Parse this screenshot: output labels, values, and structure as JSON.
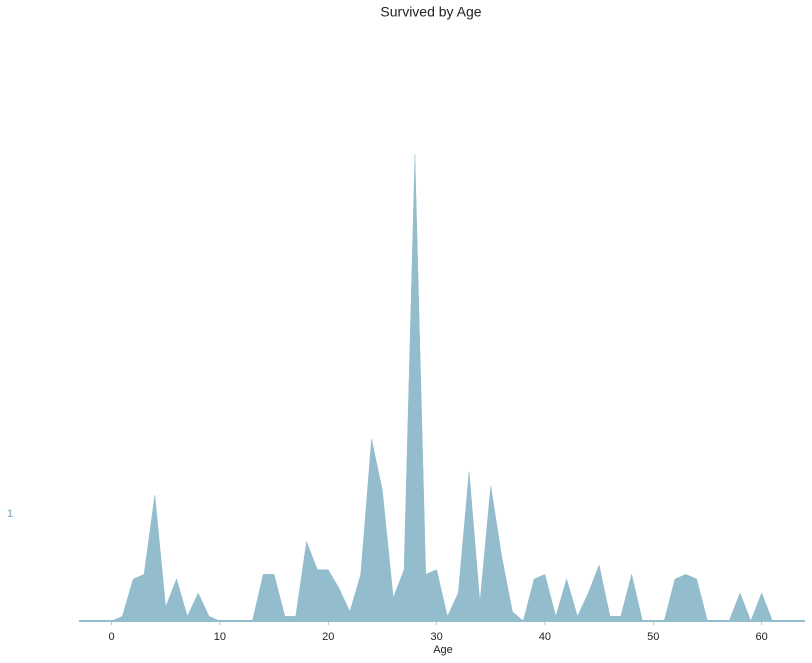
{
  "chart_data": {
    "type": "area",
    "title": "Survived by Age",
    "xlabel": "Age",
    "xlim": [
      -3,
      64
    ],
    "xticks": [
      0,
      10,
      20,
      30,
      40,
      50,
      60
    ],
    "ylim": [
      0,
      110
    ],
    "series": [
      {
        "name": "1",
        "color": "#93bccc",
        "x": [
          0,
          1,
          2,
          3,
          4,
          5,
          6,
          7,
          8,
          9,
          10,
          11,
          12,
          13,
          14,
          15,
          16,
          17,
          18,
          19,
          20,
          21,
          22,
          23,
          24,
          25,
          26,
          27,
          28,
          29,
          30,
          31,
          32,
          33,
          34,
          35,
          36,
          37,
          38,
          39,
          40,
          41,
          42,
          43,
          44,
          45,
          46,
          47,
          48,
          49,
          50,
          51,
          52,
          53,
          54,
          55,
          56,
          57,
          58,
          59,
          60,
          61
        ],
        "values": [
          0,
          1,
          9,
          10,
          27,
          3,
          9,
          1,
          6,
          1,
          0,
          0,
          0,
          0,
          10,
          10,
          1,
          1,
          17,
          11,
          11,
          7,
          2,
          10,
          39,
          28,
          5,
          11,
          100,
          10,
          11,
          1,
          6,
          32,
          4,
          29,
          14,
          2,
          0,
          9,
          10,
          1,
          9,
          1,
          6,
          12,
          1,
          1,
          10,
          0,
          0,
          0,
          9,
          10,
          9,
          0,
          0,
          0,
          6,
          0,
          6,
          0
        ]
      }
    ]
  }
}
